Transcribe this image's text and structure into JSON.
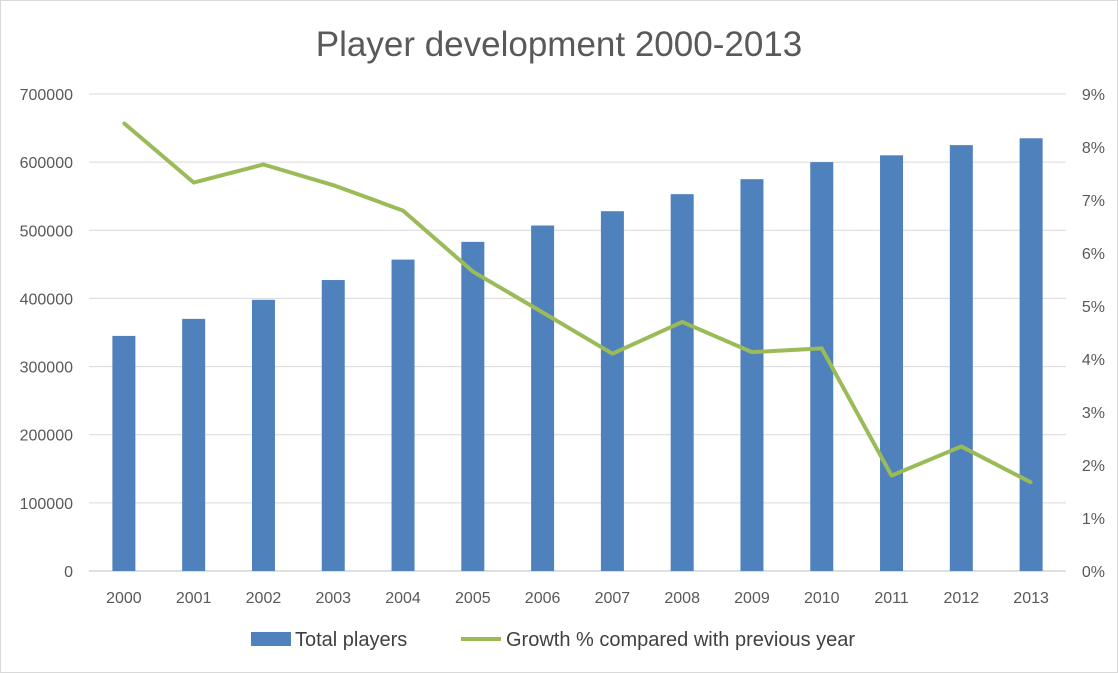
{
  "chart_data": {
    "type": "bar",
    "title": "Player development 2000-2013",
    "categories": [
      "2000",
      "2001",
      "2002",
      "2003",
      "2004",
      "2005",
      "2006",
      "2007",
      "2008",
      "2009",
      "2010",
      "2011",
      "2012",
      "2013"
    ],
    "series": [
      {
        "name": "Total players",
        "type": "bar",
        "axis": "left",
        "color": "#4f81bd",
        "values": [
          345000,
          370000,
          398000,
          427000,
          457000,
          483000,
          507000,
          528000,
          553000,
          575000,
          600000,
          610000,
          625000,
          635000
        ]
      },
      {
        "name": "Growth % compared with previous year",
        "type": "line",
        "axis": "right",
        "color": "#9bbb59",
        "values": [
          8.45,
          7.33,
          7.67,
          7.28,
          6.8,
          5.65,
          4.88,
          4.1,
          4.7,
          4.13,
          4.2,
          1.8,
          2.35,
          1.67
        ]
      }
    ],
    "y_left": {
      "min": 0,
      "max": 700000,
      "ticks": [
        "0",
        "100000",
        "200000",
        "300000",
        "400000",
        "500000",
        "600000",
        "700000"
      ]
    },
    "y_right": {
      "min": 0,
      "max": 9,
      "ticks": [
        "0%",
        "1%",
        "2%",
        "3%",
        "4%",
        "5%",
        "6%",
        "7%",
        "8%",
        "9%"
      ]
    },
    "grid": true,
    "legend_position": "bottom"
  }
}
